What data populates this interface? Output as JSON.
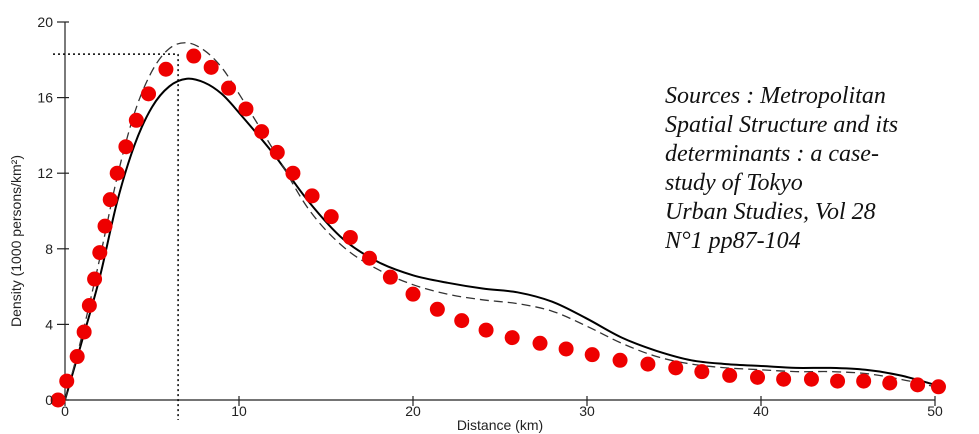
{
  "chart_data": {
    "type": "line",
    "title": "",
    "xlabel": "Distance (km)",
    "ylabel": "Density (1000 persons/km²)",
    "xlim": [
      0,
      50
    ],
    "ylim": [
      0,
      20
    ],
    "x_ticks": [
      "0",
      "10",
      "20",
      "30",
      "40",
      "50"
    ],
    "y_ticks": [
      "0",
      "4",
      "8",
      "12",
      "16",
      "20"
    ],
    "grid": false,
    "series": [
      {
        "style": "solid",
        "color": "#000000",
        "x": [
          0,
          1,
          2,
          3,
          4,
          5,
          6,
          7,
          8,
          9,
          10,
          12,
          14,
          16,
          18,
          20,
          22,
          24,
          26,
          28,
          30,
          32,
          34,
          36,
          38,
          40,
          42,
          44,
          46,
          48,
          50
        ],
        "y": [
          0,
          3.2,
          6.5,
          10.5,
          13.5,
          15.5,
          16.6,
          17.0,
          16.8,
          16.2,
          15.2,
          13.0,
          10.5,
          8.5,
          7.3,
          6.6,
          6.2,
          5.9,
          5.7,
          5.2,
          4.3,
          3.3,
          2.6,
          2.1,
          1.9,
          1.8,
          1.7,
          1.7,
          1.6,
          1.3,
          0.8
        ]
      },
      {
        "style": "dashed",
        "color": "#333333",
        "x": [
          0,
          1,
          2,
          3,
          4,
          5,
          6,
          7,
          8,
          9,
          10,
          12,
          14,
          16,
          18,
          20,
          22,
          24,
          26,
          28,
          30,
          32,
          34,
          36,
          38,
          40,
          42,
          44,
          46,
          48,
          50
        ],
        "y": [
          0,
          3.5,
          7.5,
          11.8,
          15.2,
          17.4,
          18.6,
          18.9,
          18.5,
          17.6,
          16.2,
          13.2,
          10.1,
          8.1,
          6.9,
          6.1,
          5.6,
          5.3,
          5.1,
          4.7,
          3.9,
          3.0,
          2.3,
          1.9,
          1.7,
          1.6,
          1.5,
          1.5,
          1.4,
          1.1,
          0.7
        ]
      },
      {
        "style": "markers",
        "color": "#ee0000",
        "x": [
          -0.4,
          0.1,
          0.7,
          1.1,
          1.4,
          1.7,
          2.0,
          2.3,
          2.6,
          3.0,
          3.5,
          4.1,
          4.8,
          5.8,
          7.4,
          8.4,
          9.4,
          10.4,
          11.3,
          12.2,
          13.1,
          14.2,
          15.3,
          16.4,
          17.5,
          18.7,
          20.0,
          21.4,
          22.8,
          24.2,
          25.7,
          27.3,
          28.8,
          30.3,
          31.9,
          33.5,
          35.1,
          36.6,
          38.2,
          39.8,
          41.3,
          42.9,
          44.4,
          45.9,
          47.4,
          49.0,
          50.2
        ],
        "y": [
          0.0,
          1.0,
          2.3,
          3.6,
          5.0,
          6.4,
          7.8,
          9.2,
          10.6,
          12.0,
          13.4,
          14.8,
          16.2,
          17.5,
          18.2,
          17.6,
          16.5,
          15.4,
          14.2,
          13.1,
          12.0,
          10.8,
          9.7,
          8.6,
          7.5,
          6.5,
          5.6,
          4.8,
          4.2,
          3.7,
          3.3,
          3.0,
          2.7,
          2.4,
          2.1,
          1.9,
          1.7,
          1.5,
          1.3,
          1.2,
          1.1,
          1.1,
          1.0,
          1.0,
          0.9,
          0.8,
          0.7
        ]
      }
    ],
    "reference_lines": [
      {
        "x": 6.5,
        "y": 18.3,
        "style": "dotted",
        "color": "#000000"
      }
    ],
    "annotation": {
      "lines": [
        "Sources : Metropolitan",
        "Spatial Structure and its",
        "determinants : a case-",
        "study of Tokyo",
        "Urban Studies, Vol 28",
        "N°1 pp87-104"
      ]
    }
  }
}
